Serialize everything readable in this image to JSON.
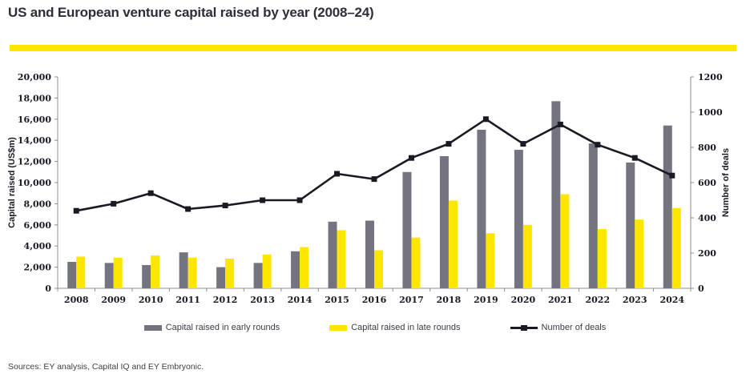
{
  "title": "US and European venture capital raised by year (2008–24)",
  "source_note": "Sources: EY analysis, Capital IQ and EY Embryonic.",
  "colors": {
    "accent_yellow": "#FFE600",
    "bar_early_gray": "#747480",
    "bar_late_yellow": "#FFE600",
    "deals_line_black": "#1A1A24",
    "title_text": "#2E2E38",
    "axis_line_gray": "#8C8C8C"
  },
  "chart_data": {
    "type": "bar",
    "subtype": "grouped-bars-with-line-overlay",
    "categories": [
      "2008",
      "2009",
      "2010",
      "2011",
      "2012",
      "2013",
      "2014",
      "2015",
      "2016",
      "2017",
      "2018",
      "2019",
      "2020",
      "2021",
      "2022",
      "2023",
      "2024"
    ],
    "series": [
      {
        "name": "Capital raised in early rounds",
        "type": "bar",
        "axis": "left",
        "color": "#747480",
        "values": [
          2500,
          2400,
          2200,
          3400,
          2000,
          2400,
          3500,
          6300,
          6400,
          11000,
          12500,
          15000,
          13100,
          17700,
          13700,
          11900,
          15400
        ]
      },
      {
        "name": "Capital raised in late rounds",
        "type": "bar",
        "axis": "left",
        "color": "#FFE600",
        "values": [
          3000,
          2900,
          3100,
          2900,
          2800,
          3200,
          3900,
          5500,
          3600,
          4800,
          8300,
          5200,
          6000,
          8900,
          5600,
          6500,
          7600
        ]
      },
      {
        "name": "Number of deals",
        "type": "line",
        "axis": "right",
        "color": "#1A1A24",
        "values": [
          440,
          480,
          540,
          450,
          470,
          500,
          500,
          650,
          620,
          740,
          820,
          960,
          820,
          930,
          815,
          740,
          640
        ]
      }
    ],
    "left_axis": {
      "label": "Capital raised (US$m)",
      "min": 0,
      "max": 20000,
      "step": 2000,
      "tick_format": "thousands-comma"
    },
    "right_axis": {
      "label": "Number of deals",
      "min": 0,
      "max": 1200,
      "step": 200
    },
    "grid": false,
    "legend_position": "bottom"
  }
}
